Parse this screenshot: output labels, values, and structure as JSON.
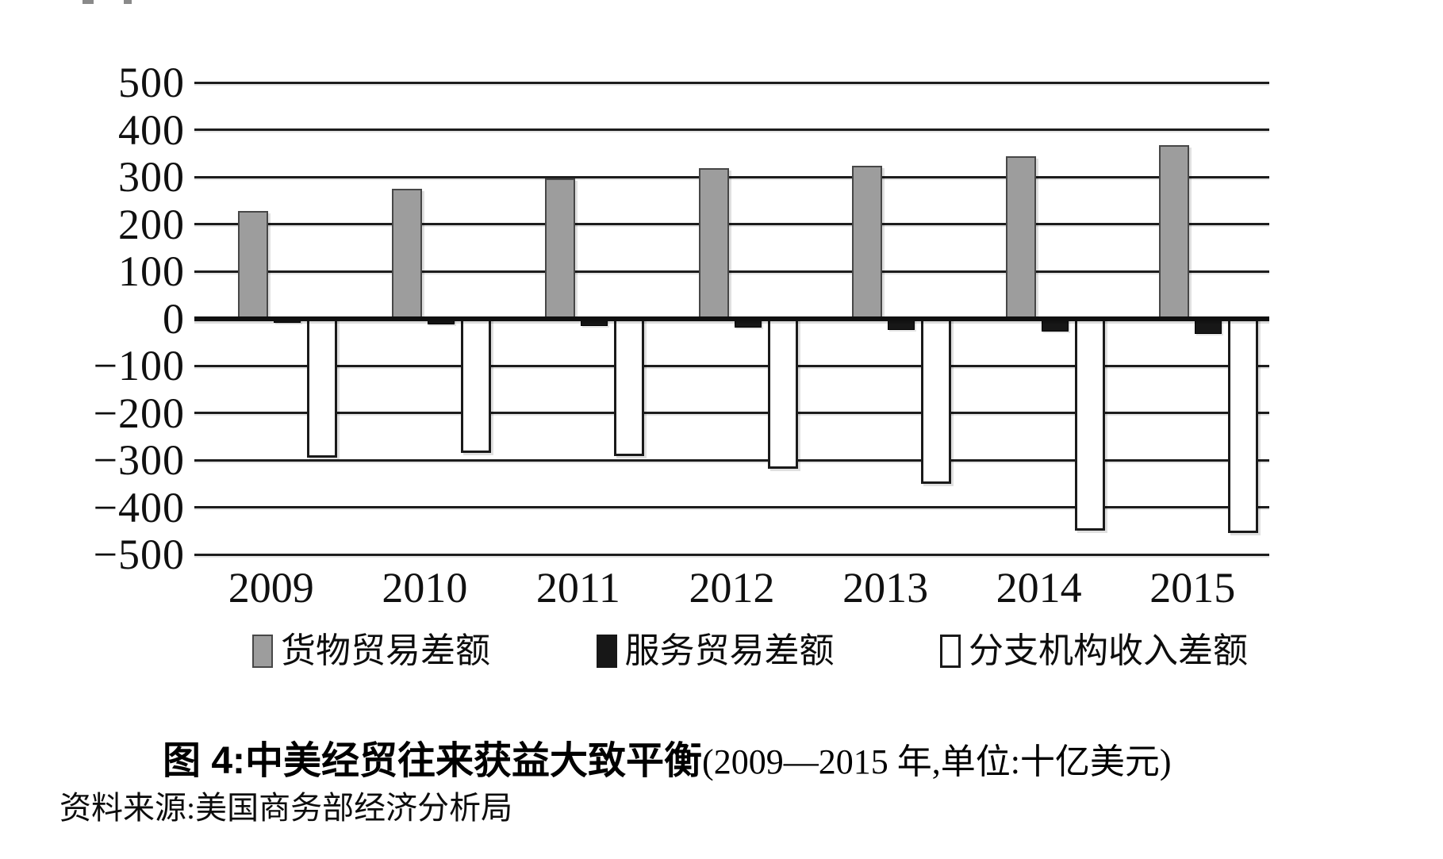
{
  "chart_data": {
    "type": "bar",
    "title": "中美经贸往来获益大致平衡",
    "title_prefix": "图 4:",
    "title_paren": "(2009—2015 年,单位:十亿美元)",
    "source": "资料来源:美国商务部经济分析局",
    "unit": "十亿美元",
    "categories": [
      "2009",
      "2010",
      "2011",
      "2012",
      "2013",
      "2014",
      "2015"
    ],
    "series": [
      {
        "name": "货物贸易差额",
        "color": "#9d9d9d",
        "values": [
          227,
          274,
          296,
          318,
          324,
          344,
          367
        ]
      },
      {
        "name": "服务贸易差额",
        "color": "#171717",
        "values": [
          -10,
          -13,
          -16,
          -19,
          -24,
          -28,
          -32
        ]
      },
      {
        "name": "分支机构收入差额",
        "color": "#ffffff",
        "values": [
          -295,
          -285,
          -292,
          -318,
          -351,
          -450,
          -455
        ]
      }
    ],
    "xlabel": "",
    "ylabel": "",
    "ylim": [
      -500,
      500
    ],
    "ytick_step": 100,
    "yticks": [
      500,
      400,
      300,
      200,
      100,
      0,
      -100,
      -200,
      -300,
      -400,
      -500
    ],
    "grid": true,
    "legend_position": "bottom"
  }
}
